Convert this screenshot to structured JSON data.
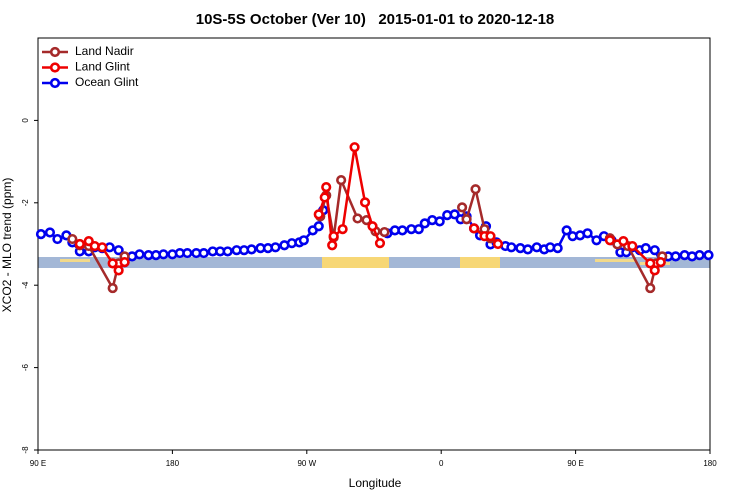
{
  "chart_data": {
    "type": "line",
    "title": "10S-5S October (Ver 10)   2015-01-01 to 2020-12-18",
    "xlabel": "Longitude",
    "ylabel": "XCO2 - MLO trend (ppm)",
    "xlim": [
      90,
      540
    ],
    "xticks": [
      {
        "value": 90,
        "label": "90 E"
      },
      180,
      {
        "value": 270,
        "label": "90 W"
      },
      {
        "value": 360,
        "label": "0"
      },
      {
        "value": 450,
        "label": "90 E"
      },
      {
        "value": 540,
        "label": "180"
      }
    ],
    "ylim": [
      -8,
      2
    ],
    "yticks": [
      -8,
      -6,
      -4,
      -2,
      0
    ],
    "legend": "top-left",
    "series": [
      {
        "name": "Ocean Glint",
        "color": "#0000ee",
        "x": [
          92,
          98,
          103,
          109,
          113,
          118,
          124,
          128,
          133,
          138,
          144,
          148,
          153,
          158,
          164,
          169,
          174,
          180,
          185,
          190,
          196,
          201,
          207,
          212,
          217,
          223,
          228,
          233,
          239,
          244,
          249,
          255,
          260,
          265,
          268,
          274,
          278,
          281,
          302,
          324,
          329,
          334,
          340,
          345,
          349,
          354,
          359,
          364,
          369,
          373,
          377,
          382,
          386,
          390,
          393,
          397,
          403,
          407,
          413,
          418,
          424,
          429,
          433,
          438,
          444,
          448,
          453,
          458,
          464,
          469,
          474,
          480,
          484,
          488,
          493,
          497,
          503,
          507,
          512,
          517,
          523,
          528,
          533,
          539
        ],
        "values": [
          -2.76,
          -2.72,
          -2.88,
          -2.79,
          -2.96,
          -3.18,
          -3.18,
          -3.08,
          -3.1,
          -3.08,
          -3.15,
          -3.44,
          -3.3,
          -3.25,
          -3.27,
          -3.27,
          -3.25,
          -3.25,
          -3.22,
          -3.22,
          -3.22,
          -3.22,
          -3.18,
          -3.18,
          -3.18,
          -3.15,
          -3.15,
          -3.13,
          -3.1,
          -3.1,
          -3.08,
          -3.03,
          -2.98,
          -2.96,
          -2.91,
          -2.67,
          -2.57,
          -2.18,
          null,
          -2.74,
          -2.67,
          -2.67,
          -2.64,
          -2.64,
          -2.5,
          -2.42,
          -2.45,
          -2.3,
          -2.28,
          -2.4,
          -2.33,
          -2.62,
          -2.79,
          -2.57,
          -3.01,
          -2.96,
          -3.05,
          -3.08,
          -3.1,
          -3.13,
          -3.08,
          -3.13,
          -3.08,
          -3.1,
          -2.67,
          -2.81,
          -2.79,
          -2.74,
          -2.91,
          -2.81,
          -2.91,
          -3.2,
          -3.2,
          -3.08,
          -3.15,
          -3.1,
          -3.15,
          -3.44,
          -3.3,
          -3.3,
          -3.27,
          -3.3,
          -3.27,
          -3.27
        ]
      },
      {
        "name": "Land Nadir",
        "color": "#a52a2a",
        "x": [
          113,
          118,
          124,
          140,
          144,
          148,
          200,
          279,
          283,
          288,
          293,
          304,
          310,
          316,
          322,
          350,
          374,
          377,
          383,
          389,
          393,
          430,
          473,
          478,
          485,
          500,
          504,
          508
        ],
        "values": [
          -2.88,
          -3.03,
          -3.05,
          -4.07,
          -3.47,
          -3.3,
          null,
          -2.33,
          -1.82,
          -2.84,
          -1.45,
          -2.38,
          -2.42,
          -2.69,
          -2.71,
          null,
          -2.11,
          -2.4,
          -1.67,
          -2.64,
          -2.86,
          null,
          -2.86,
          -3.01,
          -3.05,
          -4.07,
          -3.47,
          -3.3
        ]
      },
      {
        "name": "Land Glint",
        "color": "#ee0000",
        "x": [
          118,
          124,
          128,
          133,
          140,
          144,
          148,
          200,
          278,
          282,
          283,
          287,
          288,
          294,
          302,
          309,
          314,
          319,
          350,
          382,
          389,
          393,
          398,
          430,
          473,
          482,
          488,
          500,
          503,
          507
        ],
        "values": [
          -3.0,
          -2.93,
          -3.05,
          -3.08,
          -3.47,
          -3.64,
          -3.44,
          null,
          -2.28,
          -1.87,
          -1.62,
          -3.03,
          -2.81,
          -2.64,
          -0.65,
          -1.99,
          -2.57,
          -2.98,
          null,
          -2.62,
          -2.81,
          -2.81,
          -3.0,
          null,
          -2.91,
          -2.93,
          -3.05,
          -3.47,
          -3.64,
          -3.44
        ]
      }
    ]
  }
}
